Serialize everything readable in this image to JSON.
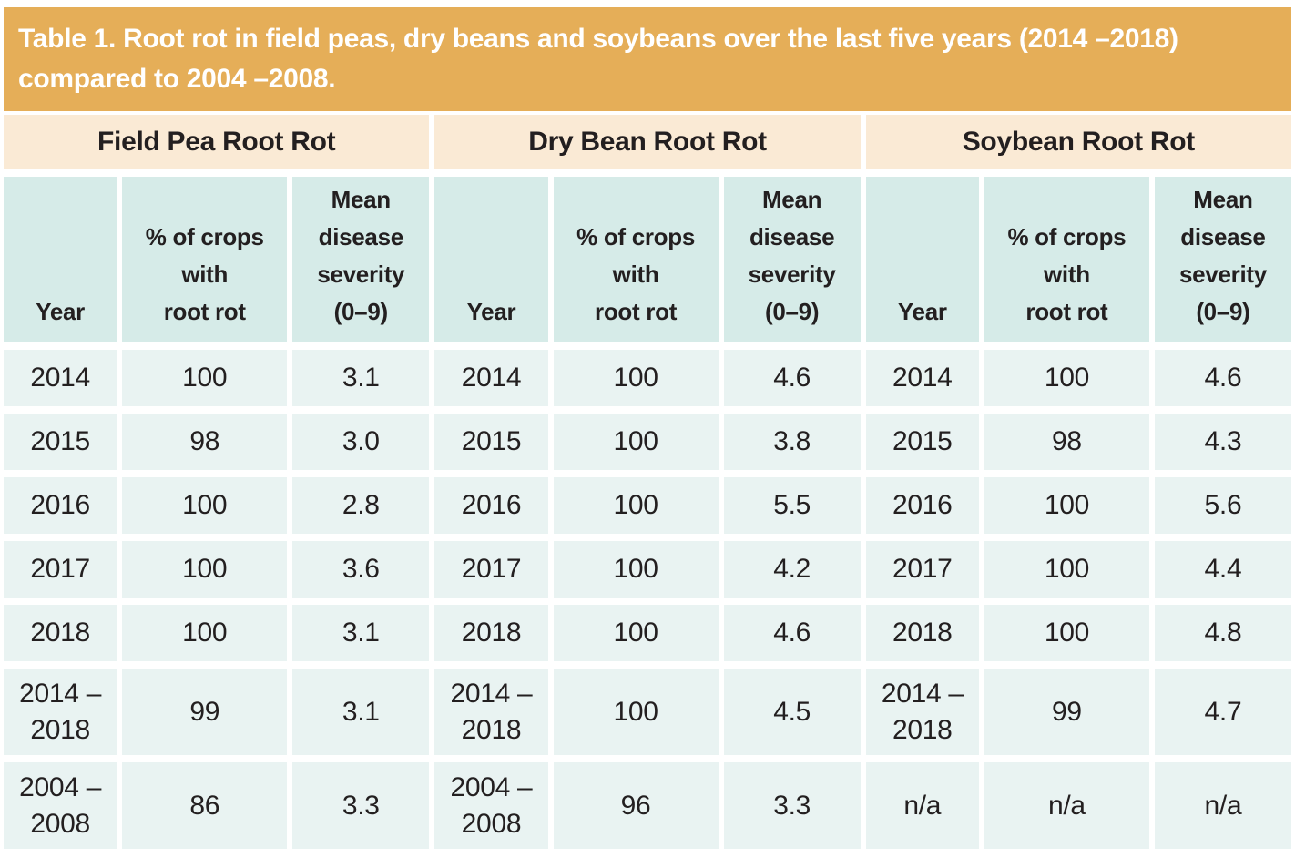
{
  "title": {
    "line1": "Table 1. Root rot in field peas, dry beans and soybeans over the last five years (2014 –2018)",
    "line2": "compared to 2004 –2008."
  },
  "colors": {
    "title_bar": "#e5ae58",
    "title_text": "#ffffff",
    "group_header_bg": "#faead5",
    "column_header_bg": "#d6ebe8",
    "cell_bg": "#e9f3f2",
    "text": "#231f20"
  },
  "chart_data": {
    "type": "table",
    "title": "Table 1. Root rot in field peas, dry beans and soybeans over the last five years (2014 –2018) compared to 2004 –2008."
  },
  "table": {
    "groups": [
      {
        "name": "Field Pea Root Rot",
        "col_headers": [
          "Year",
          "% of crops\nwith\nroot rot",
          "Mean\ndisease\nseverity\n(0–9)"
        ],
        "rows": [
          [
            "2014",
            "100",
            "3.1"
          ],
          [
            "2015",
            "98",
            "3.0"
          ],
          [
            "2016",
            "100",
            "2.8"
          ],
          [
            "2017",
            "100",
            "3.6"
          ],
          [
            "2018",
            "100",
            "3.1"
          ],
          [
            "2014 –\n2018",
            "99",
            "3.1"
          ],
          [
            "2004 –\n2008",
            "86",
            "3.3"
          ]
        ]
      },
      {
        "name": "Dry Bean Root Rot",
        "col_headers": [
          "Year",
          "% of crops\nwith\nroot rot",
          "Mean\ndisease\nseverity\n(0–9)"
        ],
        "rows": [
          [
            "2014",
            "100",
            "4.6"
          ],
          [
            "2015",
            "100",
            "3.8"
          ],
          [
            "2016",
            "100",
            "5.5"
          ],
          [
            "2017",
            "100",
            "4.2"
          ],
          [
            "2018",
            "100",
            "4.6"
          ],
          [
            "2014 –\n2018",
            "100",
            "4.5"
          ],
          [
            "2004 –\n2008",
            "96",
            "3.3"
          ]
        ]
      },
      {
        "name": "Soybean Root Rot",
        "col_headers": [
          "Year",
          "% of crops\nwith\nroot rot",
          "Mean\ndisease\nseverity\n(0–9)"
        ],
        "rows": [
          [
            "2014",
            "100",
            "4.6"
          ],
          [
            "2015",
            "98",
            "4.3"
          ],
          [
            "2016",
            "100",
            "5.6"
          ],
          [
            "2017",
            "100",
            "4.4"
          ],
          [
            "2018",
            "100",
            "4.8"
          ],
          [
            "2014 –\n2018",
            "99",
            "4.7"
          ],
          [
            "n/a",
            "n/a",
            "n/a"
          ]
        ]
      }
    ]
  }
}
